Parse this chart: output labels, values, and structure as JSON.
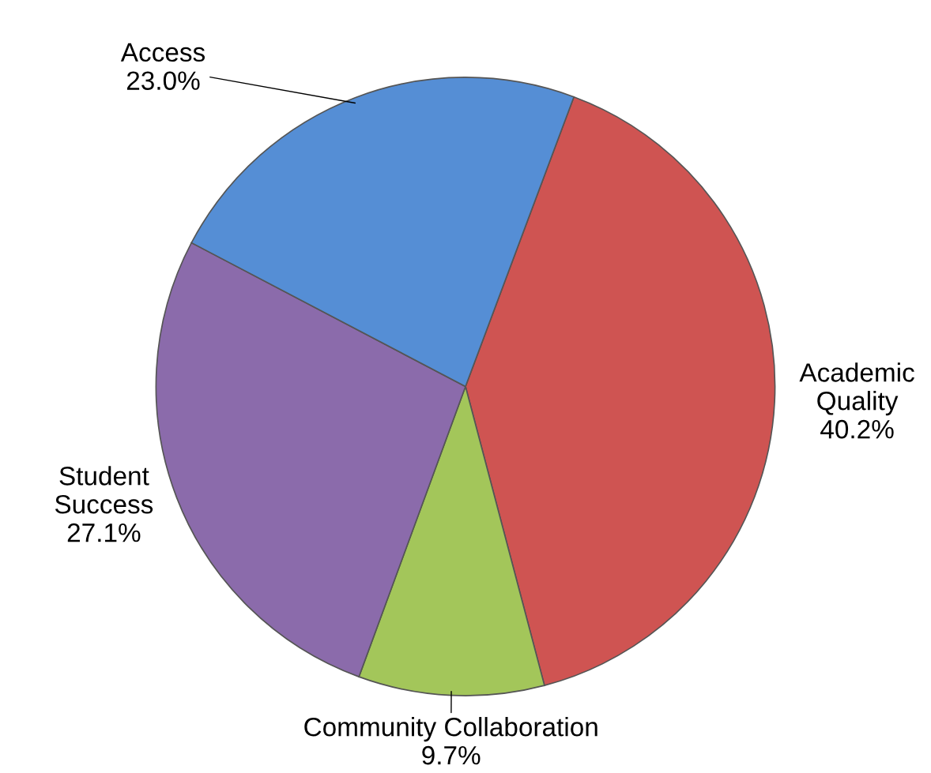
{
  "chart_data": {
    "type": "pie",
    "categories": [
      "Academic\nQuality",
      "Community Collaboration",
      "Student\nSuccess",
      "Access"
    ],
    "values": [
      40.2,
      9.7,
      27.1,
      23.0
    ],
    "value_labels": [
      "40.2%",
      "9.7%",
      "27.1%",
      "23.0%"
    ],
    "colors": [
      "#cf5452",
      "#a3c65a",
      "#8b6bab",
      "#558ed5"
    ]
  }
}
